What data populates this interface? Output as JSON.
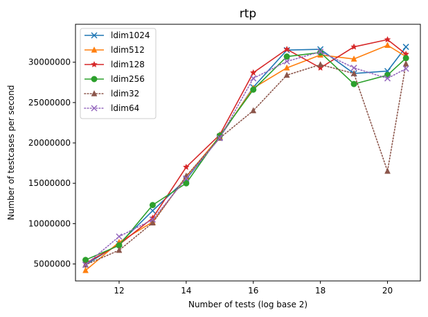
{
  "chart_data": {
    "type": "line",
    "title": "rtp",
    "xlabel": "Number of tests (log base 2)",
    "ylabel": "Number of testcases per second",
    "xlim": [
      10.7,
      20.98
    ],
    "ylim": [
      2900000,
      34700000
    ],
    "xticks": [
      12,
      14,
      16,
      18,
      20
    ],
    "yticks": [
      5000000,
      10000000,
      15000000,
      20000000,
      25000000,
      30000000
    ],
    "legend_position": "upper left",
    "grid": false,
    "x": [
      11,
      12,
      13,
      14,
      15,
      16,
      17,
      18,
      19,
      20,
      20.55
    ],
    "series": [
      {
        "name": "ldim1024",
        "color": "#1f77b4",
        "marker": "x",
        "linestyle": "solid",
        "values": [
          4900000,
          7500000,
          11600000,
          15500000,
          20700000,
          26900000,
          31500000,
          31600000,
          28600000,
          28900000,
          31900000
        ]
      },
      {
        "name": "ldim512",
        "color": "#ff7f0e",
        "marker": "triangle",
        "linestyle": "solid",
        "values": [
          4200000,
          7700000,
          10200000,
          15800000,
          20800000,
          26800000,
          29300000,
          30900000,
          30400000,
          32100000,
          30700000
        ]
      },
      {
        "name": "ldim128",
        "color": "#d62728",
        "marker": "star",
        "linestyle": "solid",
        "values": [
          5100000,
          7400000,
          10700000,
          17000000,
          21000000,
          28700000,
          31600000,
          29300000,
          31900000,
          32800000,
          31000000
        ]
      },
      {
        "name": "ldim256",
        "color": "#2ca02c",
        "marker": "circle",
        "linestyle": "solid",
        "values": [
          5500000,
          7300000,
          12300000,
          15000000,
          20900000,
          26600000,
          30700000,
          31200000,
          27300000,
          28400000,
          30500000
        ]
      },
      {
        "name": "ldim32",
        "color": "#8c564b",
        "marker": "triangle",
        "linestyle": "dotted",
        "values": [
          4900000,
          6700000,
          10100000,
          15900000,
          20600000,
          24000000,
          28400000,
          29700000,
          28600000,
          16500000,
          29800000
        ]
      },
      {
        "name": "ldim64",
        "color": "#9467bd",
        "marker": "x",
        "linestyle": "dotted",
        "values": [
          4900000,
          8400000,
          10500000,
          15600000,
          20600000,
          28000000,
          30100000,
          31300000,
          29300000,
          28000000,
          29200000
        ]
      }
    ]
  }
}
